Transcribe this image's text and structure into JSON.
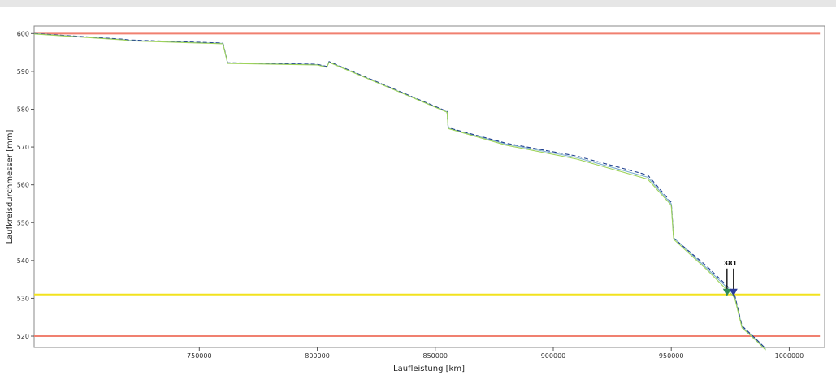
{
  "chart_data": {
    "type": "line",
    "xlabel": "Laufleistung [km]",
    "ylabel": "Laufkreisdurchmesser [mm]",
    "xlim": [
      680000,
      1015000
    ],
    "ylim": [
      517,
      602
    ],
    "x_ticks": [
      {
        "value": 750000,
        "label": "750000"
      },
      {
        "value": 800000,
        "label": "800000"
      },
      {
        "value": 850000,
        "label": "850000"
      },
      {
        "value": 900000,
        "label": "900000"
      },
      {
        "value": 950000,
        "label": "950000"
      },
      {
        "value": 1000000,
        "label": "1000000"
      }
    ],
    "y_ticks": [
      {
        "value": 520,
        "label": "520"
      },
      {
        "value": 530,
        "label": "530"
      },
      {
        "value": 540,
        "label": "540"
      },
      {
        "value": 550,
        "label": "550"
      },
      {
        "value": 560,
        "label": "560"
      },
      {
        "value": 570,
        "label": "570"
      },
      {
        "value": 580,
        "label": "580"
      },
      {
        "value": 590,
        "label": "590"
      },
      {
        "value": 600,
        "label": "600"
      }
    ],
    "grid": false,
    "reference_lines": [
      {
        "y": 600,
        "color": "#f08070"
      },
      {
        "y": 531,
        "color": "#f2e21e"
      },
      {
        "y": 520,
        "color": "#f08070"
      }
    ],
    "series": [
      {
        "color": "#7fb0cf",
        "x": [
          680000,
          718000,
          720000,
          760000,
          762000,
          800000,
          804000,
          805000,
          855000,
          855500,
          880000,
          910000,
          940000,
          950000,
          951000,
          965000,
          972000,
          976000,
          977000,
          980000,
          986000,
          990000
        ],
        "y": [
          600,
          598.4,
          598.2,
          597.4,
          592.2,
          591.8,
          591.2,
          592.5,
          579.3,
          575,
          570.8,
          567.2,
          562,
          555,
          546,
          538,
          533.8,
          531.3,
          530.2,
          522.5,
          519,
          516.5
        ]
      },
      {
        "color": "#1f3f8f",
        "x": [
          680000,
          718000,
          720000,
          760000,
          762000,
          800000,
          804000,
          805000,
          855000,
          855500,
          880000,
          910000,
          940000,
          950000,
          951000,
          965000,
          972000,
          976000,
          977000,
          980000,
          986000,
          990000
        ],
        "y": [
          600,
          598.5,
          598.3,
          597.5,
          592.3,
          591.9,
          591.3,
          592.6,
          579.4,
          575.1,
          571,
          567.6,
          562.6,
          555.4,
          545.9,
          538.5,
          534.3,
          531.8,
          530.6,
          522.7,
          519.2,
          516.7
        ]
      },
      {
        "color": "#9ed35a",
        "x": [
          680000,
          718000,
          720000,
          760000,
          762000,
          800000,
          804000,
          805000,
          855000,
          855500,
          880000,
          910000,
          940000,
          950000,
          951000,
          965000,
          972000,
          976000,
          977000,
          980000,
          986000,
          990000
        ],
        "y": [
          599.9,
          598.3,
          598.1,
          597.3,
          592.1,
          591.7,
          591.1,
          592.4,
          579.2,
          574.9,
          570.5,
          566.8,
          561.5,
          554.6,
          545.6,
          537.6,
          533.2,
          530.8,
          529.8,
          522.2,
          518.8,
          516.3
        ]
      }
    ],
    "annotations": [
      {
        "label": "381",
        "x": 975000,
        "y": 531,
        "markers": [
          {
            "color": "#2e8b57"
          },
          {
            "color": "#2b3b9b"
          }
        ]
      }
    ]
  }
}
